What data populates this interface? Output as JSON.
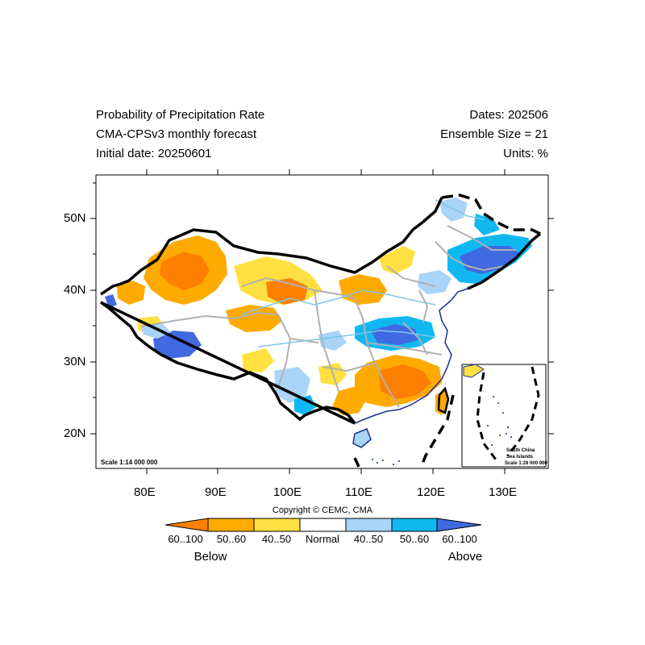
{
  "header": {
    "title_line1": "Probability of Precipitation Rate",
    "title_line2": "CMA-CPSv3 monthly forecast",
    "title_line3": "Initial date: 20250601",
    "dates": "Dates: 202506",
    "ensemble": "Ensemble Size = 21",
    "units": "Units: %"
  },
  "map": {
    "lat_ticks": [
      "50N",
      "40N",
      "30N",
      "20N"
    ],
    "lon_ticks": [
      "80E",
      "90E",
      "100E",
      "110E",
      "120E",
      "130E"
    ],
    "scale_main": "Scale 1:14 000 000",
    "inset_line1": "South China",
    "inset_line2": "Sea Islands",
    "inset_scale": "Scale 1:28 000 000"
  },
  "copyright": "Copyright © CEMC, CMA",
  "legend": {
    "items": [
      {
        "label": "60..100",
        "color": "#ff8000"
      },
      {
        "label": "50..60",
        "color": "#ffaa00"
      },
      {
        "label": "40..50",
        "color": "#ffe040"
      },
      {
        "label": "Normal",
        "color": "#ffffff"
      },
      {
        "label": "40..50",
        "color": "#a9d4f7"
      },
      {
        "label": "50..60",
        "color": "#10b8f2"
      },
      {
        "label": "60..100",
        "color": "#4169e1"
      }
    ],
    "below": "Below",
    "above": "Above"
  }
}
